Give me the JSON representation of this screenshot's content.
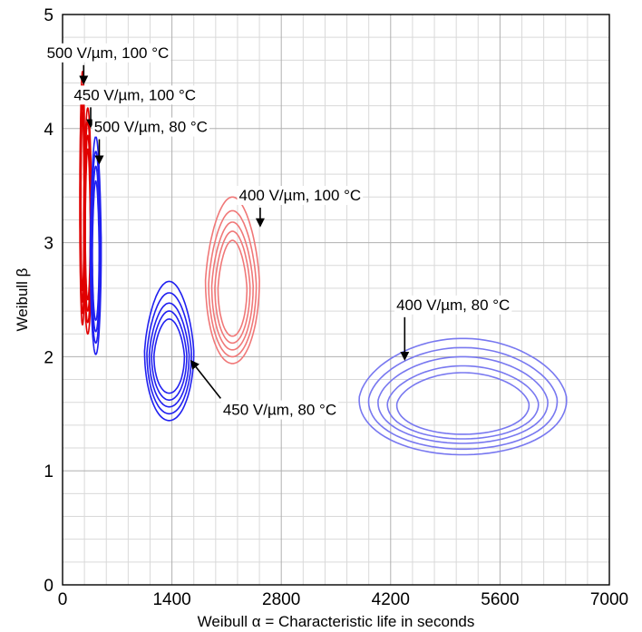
{
  "chart_data": {
    "type": "contour",
    "xlabel": "Weibull α = Characteristic life in seconds",
    "ylabel": "Weibull β",
    "xlim": [
      0,
      7000
    ],
    "ylim": [
      0,
      5
    ],
    "x_ticks": [
      0,
      1400,
      2800,
      4200,
      5600,
      7000
    ],
    "x_tick_labels": [
      "0",
      "1400",
      "2800",
      "4200",
      "5600",
      "7000"
    ],
    "y_ticks": [
      0,
      1,
      2,
      3,
      4,
      5
    ],
    "y_tick_labels": [
      "0",
      "1",
      "2",
      "3",
      "4",
      "5"
    ],
    "grid": {
      "major_x_step": 1400,
      "minor_x_step": 280,
      "major_y_step": 1,
      "minor_y_step": 0.2
    },
    "colors": {
      "red_dark": "#e00000",
      "red_light": "#f07878",
      "blue_dark": "#2020f0",
      "blue_light": "#7878f0",
      "grid_major": "#b0b0b0",
      "grid_minor": "#d9d9d9"
    },
    "series": [
      {
        "label": "500 V/µm, 100 °C",
        "color": "#e00000",
        "center": [
          255,
          3.35
        ],
        "contour_rings": [
          {
            "x_range": [
              220,
              290
            ],
            "y_range": [
              2.28,
              4.5
            ]
          },
          {
            "x_range": [
              225,
              285
            ],
            "y_range": [
              2.38,
              4.38
            ]
          },
          {
            "x_range": [
              230,
              280
            ],
            "y_range": [
              2.48,
              4.26
            ]
          },
          {
            "x_range": [
              235,
              275
            ],
            "y_range": [
              2.58,
              4.14
            ]
          }
        ]
      },
      {
        "label": "450 V/µm, 100 °C",
        "color": "#e00000",
        "center": [
          320,
          3.15
        ],
        "contour_rings": [
          {
            "x_range": [
              270,
              375
            ],
            "y_range": [
              2.2,
              4.18
            ]
          },
          {
            "x_range": [
              277,
              368
            ],
            "y_range": [
              2.3,
              4.06
            ]
          },
          {
            "x_range": [
              284,
              361
            ],
            "y_range": [
              2.4,
              3.94
            ]
          },
          {
            "x_range": [
              291,
              354
            ],
            "y_range": [
              2.5,
              3.82
            ]
          }
        ]
      },
      {
        "label": "500 V/µm, 80 °C",
        "color": "#2020f0",
        "center": [
          420,
          2.95
        ],
        "contour_rings": [
          {
            "x_range": [
              355,
              495
            ],
            "y_range": [
              2.02,
              3.93
            ]
          },
          {
            "x_range": [
              364,
              486
            ],
            "y_range": [
              2.12,
              3.8
            ]
          },
          {
            "x_range": [
              373,
              477
            ],
            "y_range": [
              2.22,
              3.67
            ]
          },
          {
            "x_range": [
              382,
              468
            ],
            "y_range": [
              2.32,
              3.54
            ]
          }
        ]
      },
      {
        "label": "400 V/µm, 100 °C",
        "color": "#f07878",
        "center": [
          2200,
          2.75
        ],
        "contour_rings": [
          {
            "x_range": [
              1830,
              2520
            ],
            "y_range": [
              1.94,
              3.4
            ]
          },
          {
            "x_range": [
              1870,
              2480
            ],
            "y_range": [
              2.0,
              3.28
            ]
          },
          {
            "x_range": [
              1910,
              2440
            ],
            "y_range": [
              2.06,
              3.18
            ]
          },
          {
            "x_range": [
              1950,
              2400
            ],
            "y_range": [
              2.12,
              3.1
            ]
          },
          {
            "x_range": [
              1990,
              2360
            ],
            "y_range": [
              2.18,
              3.02
            ]
          }
        ]
      },
      {
        "label": "450 V/µm, 80 °C",
        "color": "#2020f0",
        "center": [
          1350,
          2.05
        ],
        "contour_rings": [
          {
            "x_range": [
              1050,
              1680
            ],
            "y_range": [
              1.44,
              2.66
            ]
          },
          {
            "x_range": [
              1080,
              1650
            ],
            "y_range": [
              1.5,
              2.56
            ]
          },
          {
            "x_range": [
              1110,
              1620
            ],
            "y_range": [
              1.56,
              2.47
            ]
          },
          {
            "x_range": [
              1140,
              1590
            ],
            "y_range": [
              1.62,
              2.4
            ]
          },
          {
            "x_range": [
              1170,
              1560
            ],
            "y_range": [
              1.68,
              2.33
            ]
          }
        ]
      },
      {
        "label": "400 V/µm, 80 °C",
        "color": "#7878f0",
        "center": [
          5000,
          1.62
        ],
        "contour_rings": [
          {
            "x_range": [
              3800,
              6450
            ],
            "y_range": [
              1.14,
              2.16
            ]
          },
          {
            "x_range": [
              3920,
              6330
            ],
            "y_range": [
              1.19,
              2.08
            ]
          },
          {
            "x_range": [
              4040,
              6210
            ],
            "y_range": [
              1.24,
              2.0
            ]
          },
          {
            "x_range": [
              4160,
              6090
            ],
            "y_range": [
              1.28,
              1.92
            ]
          },
          {
            "x_range": [
              4280,
              5970
            ],
            "y_range": [
              1.32,
              1.86
            ]
          }
        ]
      }
    ],
    "annotations": [
      {
        "text": "500 V/µm, 100 °C",
        "arrow_to": [
          270,
          4.4
        ],
        "text_at": [
          580,
          4.62
        ]
      },
      {
        "text": "450 V/µm, 100 °C",
        "arrow_to": [
          360,
          4.02
        ],
        "text_at": [
          925,
          4.25
        ]
      },
      {
        "text": "500 V/µm, 80 °C",
        "arrow_to": [
          470,
          3.7
        ],
        "text_at": [
          1130,
          3.97
        ]
      },
      {
        "text": "400 V/µm, 100 °C",
        "arrow_to": [
          2530,
          3.15
        ],
        "text_at": [
          3040,
          3.37
        ]
      },
      {
        "text": "450 V/µm, 80 °C",
        "arrow_to": [
          1650,
          1.96
        ],
        "text_at": [
          2780,
          1.49
        ]
      },
      {
        "text": "400 V/µm, 80 °C",
        "arrow_to": [
          4380,
          1.98
        ],
        "text_at": [
          5000,
          2.41
        ]
      }
    ]
  }
}
